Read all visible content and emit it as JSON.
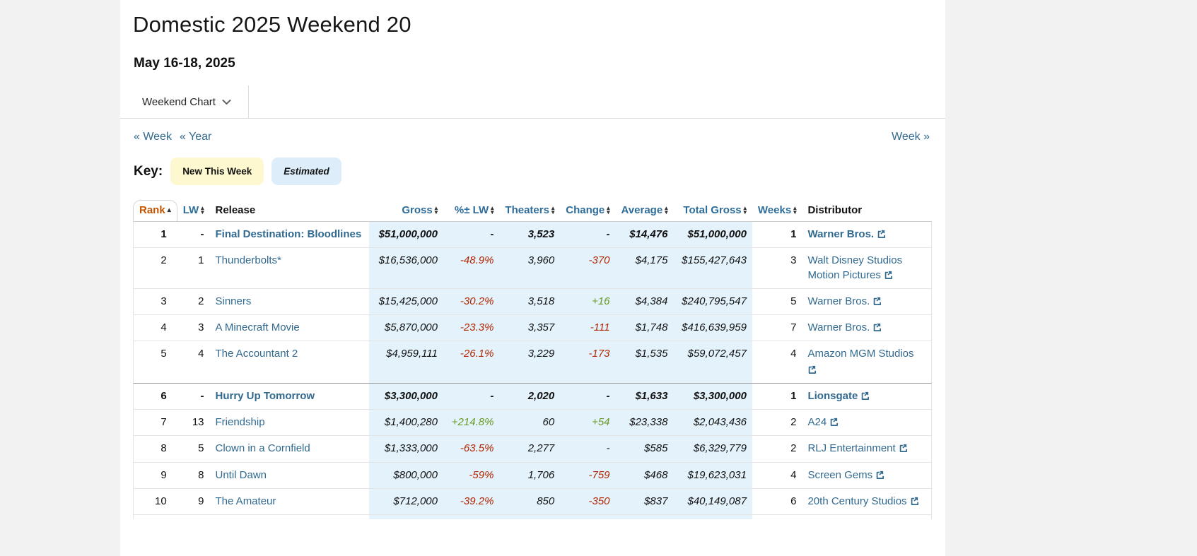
{
  "page": {
    "title": "Domestic 2025 Weekend 20",
    "date_range": "May 16-18, 2025",
    "chart_selector": "Weekend Chart"
  },
  "nav": {
    "prev_week": "« Week",
    "prev_year": "« Year",
    "next_week": "Week »"
  },
  "key": {
    "label": "Key:",
    "new_this_week": "New This Week",
    "estimated": "Estimated"
  },
  "colors": {
    "link": "#31698f",
    "header_sort": "#2e6d99",
    "rank_active": "#c45500",
    "negative": "#b12704",
    "positive": "#6a9a23",
    "est_bg": "#e3f2fb",
    "new_badge_bg": "#fdf8cf",
    "est_badge_bg": "#ddeefa",
    "page_bg": "#f2f2f2",
    "border": "#e4e4e4"
  },
  "table": {
    "headers": [
      {
        "label": "Rank",
        "align": "left",
        "sort": "asc",
        "style": "rank"
      },
      {
        "label": "LW",
        "align": "right",
        "sort": "both"
      },
      {
        "label": "Release",
        "align": "left",
        "sort": "none"
      },
      {
        "label": "Gross",
        "align": "right",
        "sort": "both"
      },
      {
        "label": "%± LW",
        "align": "right",
        "sort": "both"
      },
      {
        "label": "Theaters",
        "align": "right",
        "sort": "both"
      },
      {
        "label": "Change",
        "align": "right",
        "sort": "both"
      },
      {
        "label": "Average",
        "align": "right",
        "sort": "both"
      },
      {
        "label": "Total Gross",
        "align": "right",
        "sort": "both"
      },
      {
        "label": "Weeks",
        "align": "right",
        "sort": "both"
      },
      {
        "label": "Distributor",
        "align": "left",
        "sort": "none"
      }
    ],
    "rows": [
      {
        "rank": "1",
        "lw": "-",
        "release": "Final Destination: Bloodlines",
        "gross": "$51,000,000",
        "pct_lw": "-",
        "pct_dir": "",
        "theaters": "3,523",
        "change": "-",
        "change_dir": "",
        "average": "$14,476",
        "total_gross": "$51,000,000",
        "weeks": "1",
        "distributor": "Warner Bros.",
        "new_this_week": true,
        "dist_icon_own_line": false
      },
      {
        "rank": "2",
        "lw": "1",
        "release": "Thunderbolts*",
        "gross": "$16,536,000",
        "pct_lw": "-48.9%",
        "pct_dir": "neg",
        "theaters": "3,960",
        "change": "-370",
        "change_dir": "neg",
        "average": "$4,175",
        "total_gross": "$155,427,643",
        "weeks": "3",
        "distributor": "Walt Disney Studios Motion Pictures",
        "new_this_week": false,
        "dist_icon_own_line": false
      },
      {
        "rank": "3",
        "lw": "2",
        "release": "Sinners",
        "gross": "$15,425,000",
        "pct_lw": "-30.2%",
        "pct_dir": "neg",
        "theaters": "3,518",
        "change": "+16",
        "change_dir": "pos",
        "average": "$4,384",
        "total_gross": "$240,795,547",
        "weeks": "5",
        "distributor": "Warner Bros.",
        "new_this_week": false,
        "dist_icon_own_line": false
      },
      {
        "rank": "4",
        "lw": "3",
        "release": "A Minecraft Movie",
        "gross": "$5,870,000",
        "pct_lw": "-23.3%",
        "pct_dir": "neg",
        "theaters": "3,357",
        "change": "-111",
        "change_dir": "neg",
        "average": "$1,748",
        "total_gross": "$416,639,959",
        "weeks": "7",
        "distributor": "Warner Bros.",
        "new_this_week": false,
        "dist_icon_own_line": false
      },
      {
        "rank": "5",
        "lw": "4",
        "release": "The Accountant 2",
        "gross": "$4,959,111",
        "pct_lw": "-26.1%",
        "pct_dir": "neg",
        "theaters": "3,229",
        "change": "-173",
        "change_dir": "neg",
        "average": "$1,535",
        "total_gross": "$59,072,457",
        "weeks": "4",
        "distributor": "Amazon MGM Studios",
        "new_this_week": false,
        "dist_icon_own_line": true
      },
      {
        "rank": "6",
        "lw": "-",
        "release": "Hurry Up Tomorrow",
        "gross": "$3,300,000",
        "pct_lw": "-",
        "pct_dir": "",
        "theaters": "2,020",
        "change": "-",
        "change_dir": "",
        "average": "$1,633",
        "total_gross": "$3,300,000",
        "weeks": "1",
        "distributor": "Lionsgate",
        "new_this_week": true,
        "dist_icon_own_line": false
      },
      {
        "rank": "7",
        "lw": "13",
        "release": "Friendship",
        "gross": "$1,400,280",
        "pct_lw": "+214.8%",
        "pct_dir": "pos",
        "theaters": "60",
        "change": "+54",
        "change_dir": "pos",
        "average": "$23,338",
        "total_gross": "$2,043,436",
        "weeks": "2",
        "distributor": "A24",
        "new_this_week": false,
        "dist_icon_own_line": false
      },
      {
        "rank": "8",
        "lw": "5",
        "release": "Clown in a Cornfield",
        "gross": "$1,333,000",
        "pct_lw": "-63.5%",
        "pct_dir": "neg",
        "theaters": "2,277",
        "change": "-",
        "change_dir": "",
        "average": "$585",
        "total_gross": "$6,329,779",
        "weeks": "2",
        "distributor": "RLJ Entertainment",
        "new_this_week": false,
        "dist_icon_own_line": false
      },
      {
        "rank": "9",
        "lw": "8",
        "release": "Until Dawn",
        "gross": "$800,000",
        "pct_lw": "-59%",
        "pct_dir": "neg",
        "theaters": "1,706",
        "change": "-759",
        "change_dir": "neg",
        "average": "$468",
        "total_gross": "$19,623,031",
        "weeks": "4",
        "distributor": "Screen Gems",
        "new_this_week": false,
        "dist_icon_own_line": false
      },
      {
        "rank": "10",
        "lw": "9",
        "release": "The Amateur",
        "gross": "$712,000",
        "pct_lw": "-39.2%",
        "pct_dir": "neg",
        "theaters": "850",
        "change": "-350",
        "change_dir": "neg",
        "average": "$837",
        "total_gross": "$40,149,087",
        "weeks": "6",
        "distributor": "20th Century Studios",
        "new_this_week": false,
        "dist_icon_own_line": false
      }
    ]
  }
}
